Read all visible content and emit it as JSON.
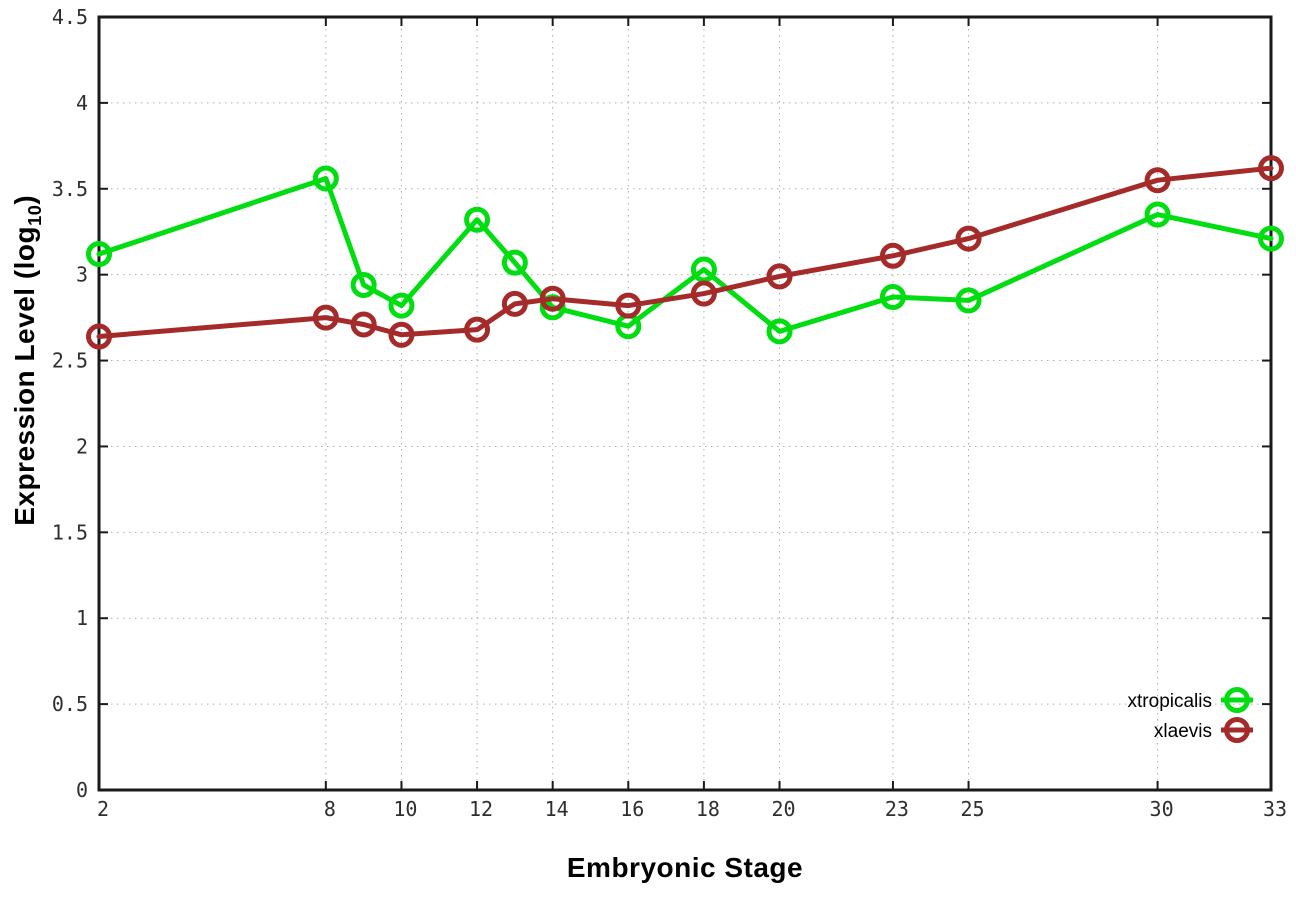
{
  "figure": {
    "x_axis_title": "Embryonic Stage",
    "y_axis_title_pre": "Expression Level (log",
    "y_axis_title_sub": "10",
    "y_axis_title_post": ")"
  },
  "chart_data": {
    "type": "line",
    "title": "",
    "xlabel": "Embryonic Stage",
    "ylabel": "Expression Level (log10)",
    "x": [
      2,
      8,
      9,
      10,
      12,
      13,
      14,
      16,
      18,
      20,
      23,
      25,
      30,
      33
    ],
    "series": [
      {
        "name": "xtropicalis",
        "color": "#00dd11",
        "values": [
          3.12,
          3.56,
          2.94,
          2.82,
          3.32,
          3.07,
          2.81,
          2.7,
          3.03,
          2.67,
          2.87,
          2.85,
          3.35,
          3.21
        ]
      },
      {
        "name": "xlaevis",
        "color": "#a52a2a",
        "values": [
          2.64,
          2.75,
          2.71,
          2.65,
          2.68,
          2.83,
          2.86,
          2.82,
          2.89,
          2.99,
          3.11,
          3.21,
          3.55,
          3.62
        ]
      }
    ],
    "xlim": [
      2,
      33
    ],
    "ylim": [
      0,
      4.5
    ],
    "xticks": [
      2,
      8,
      10,
      12,
      14,
      16,
      18,
      20,
      23,
      25,
      30,
      33
    ],
    "yticks": [
      0,
      0.5,
      1,
      1.5,
      2,
      2.5,
      3,
      3.5,
      4,
      4.5
    ],
    "grid": true,
    "marker": "open-circle",
    "legend_position": "bottom-right",
    "legend": [
      "xtropicalis",
      "xlaevis"
    ],
    "axis_color": "#1a1a1a",
    "grid_color": "#ababab",
    "tick_label_color": "#2e2e2e"
  }
}
